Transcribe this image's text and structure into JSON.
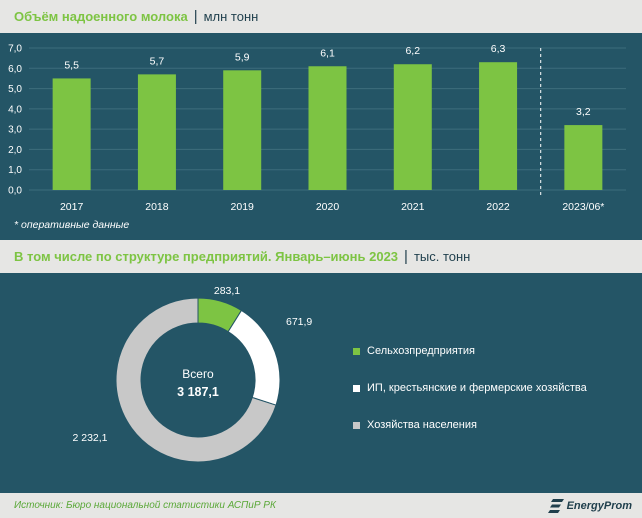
{
  "header": {
    "title": "Объём надоенного молока",
    "separator": "|",
    "unit": "млн тонн"
  },
  "note": "* оперативные данные",
  "section2": {
    "title": "В том числе по структуре предприятий. Январь–июнь 2023",
    "separator": "|",
    "unit": "тыс. тонн"
  },
  "donut_center": {
    "label": "Всего",
    "value": "3 187,1"
  },
  "footer": {
    "source": "Источник: Бюро национальной статистики АСПиР РК",
    "brand": "EnergyProm"
  },
  "colors": {
    "background": "#245566",
    "green": "#7dc443",
    "white": "#ffffff",
    "grey": "#c8c8c8",
    "band": "#e6e6e4"
  },
  "chart_data": [
    {
      "type": "bar",
      "categories": [
        "2017",
        "2018",
        "2019",
        "2020",
        "2021",
        "2022",
        "2023/06*"
      ],
      "values": [
        5.5,
        5.7,
        5.9,
        6.1,
        6.2,
        6.3,
        3.2
      ],
      "value_labels": [
        "5,5",
        "5,7",
        "5,9",
        "6,1",
        "6,2",
        "6,3",
        "3,2"
      ],
      "yticks": [
        "0,0",
        "1,0",
        "2,0",
        "3,0",
        "4,0",
        "5,0",
        "6,0",
        "7,0"
      ],
      "ylim": [
        0,
        7
      ],
      "grid": true,
      "color": "#7dc443"
    },
    {
      "type": "pie",
      "style": "donut",
      "labels": [
        "Сельхозпредприятия",
        "ИП, крестьянские и фермерские хозяйства",
        "Хозяйства населения"
      ],
      "values": [
        283.1,
        671.9,
        2232.1
      ],
      "value_labels": [
        "283,1",
        "671,9",
        "2 232,1"
      ],
      "colors": [
        "#7dc443",
        "#ffffff",
        "#c8c8c8"
      ],
      "legend": "right"
    }
  ]
}
